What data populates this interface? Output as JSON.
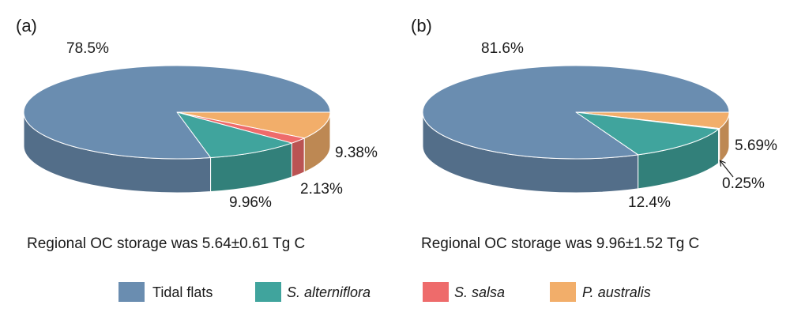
{
  "legend": {
    "items": [
      {
        "label": "Tidal flats",
        "color": "#6a8db0",
        "italic": false
      },
      {
        "label": "S. alterniflora",
        "color": "#40a49d",
        "italic": true
      },
      {
        "label": "S. salsa",
        "color": "#ee6b6b",
        "italic": true
      },
      {
        "label": "P. australis",
        "color": "#f2ae6a",
        "italic": true
      }
    ]
  },
  "chart_data": [
    {
      "type": "pie",
      "panel_label": "(a)",
      "caption": "Regional OC storage was 5.64±0.61 Tg C",
      "slices": [
        {
          "name": "Tidal flats",
          "value": 78.5,
          "label": "78.5%"
        },
        {
          "name": "S. alterniflora",
          "value": 9.96,
          "label": "9.96%"
        },
        {
          "name": "S. salsa",
          "value": 2.13,
          "label": "2.13%"
        },
        {
          "name": "P. australis",
          "value": 9.38,
          "label": "9.38%"
        }
      ]
    },
    {
      "type": "pie",
      "panel_label": "(b)",
      "caption": "Regional OC storage was 9.96±1.52 Tg C",
      "slices": [
        {
          "name": "Tidal flats",
          "value": 81.6,
          "label": "81.6%"
        },
        {
          "name": "S. alterniflora",
          "value": 12.4,
          "label": "12.4%"
        },
        {
          "name": "S. salsa",
          "value": 0.25,
          "label": "0.25%"
        },
        {
          "name": "P. australis",
          "value": 5.69,
          "label": "5.69%"
        }
      ]
    }
  ]
}
